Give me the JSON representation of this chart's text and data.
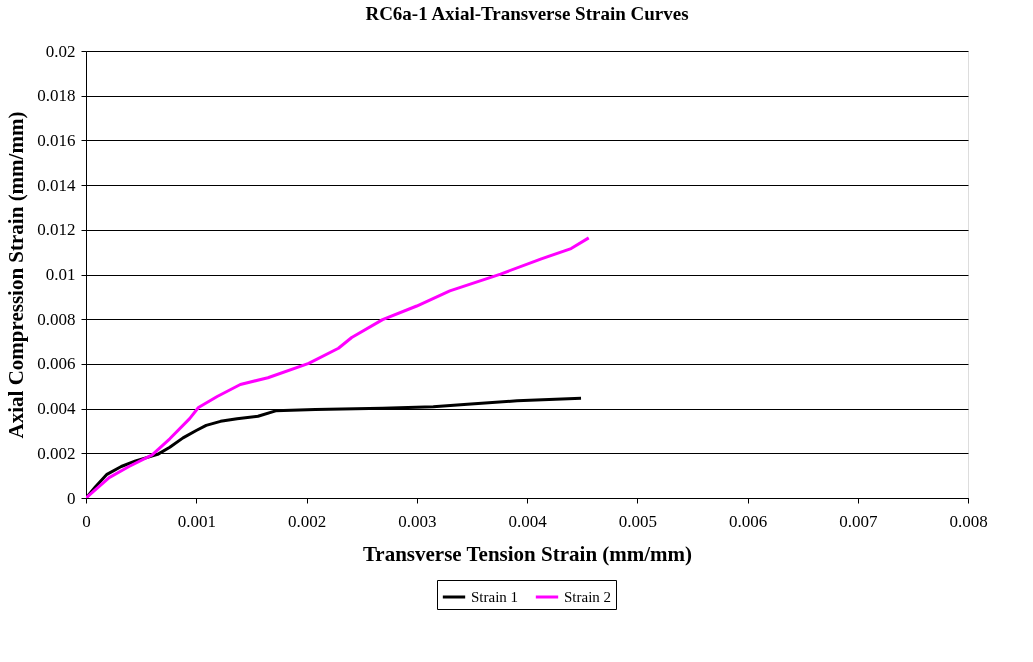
{
  "chart_data": {
    "type": "line",
    "title": "RC6a-1 Axial-Transverse Strain Curves",
    "xlabel": "Transverse Tension Strain (mm/mm)",
    "ylabel": "Axial Compression Strain (mm/mm)",
    "xlim": [
      0,
      0.008
    ],
    "xticks": [
      0,
      0.001,
      0.002,
      0.003,
      0.004,
      0.005,
      0.006,
      0.007,
      0.008
    ],
    "ylim": [
      0,
      0.02
    ],
    "yticks": [
      0,
      0.002,
      0.004,
      0.006,
      0.008,
      0.01,
      0.012,
      0.014,
      0.016,
      0.018,
      0.02
    ],
    "grid": "y",
    "legend": "bottom",
    "marker": "none",
    "line_style": "solid",
    "series": [
      {
        "name": "Strain 1",
        "color": "#000000",
        "x": [
          0,
          8.6e-05,
          0.00019,
          0.00032,
          0.00045,
          0.00065,
          0.00076,
          0.00088,
          0.001,
          0.00109,
          0.00122,
          0.00137,
          0.00156,
          0.00172,
          0.00208,
          0.00269,
          0.00315,
          0.00346,
          0.00391,
          0.00449
        ],
        "values": [
          0,
          0.0005,
          0.00106,
          0.00141,
          0.00166,
          0.00195,
          0.00227,
          0.00269,
          0.00302,
          0.00325,
          0.00343,
          0.00355,
          0.00366,
          0.0039,
          0.00396,
          0.00402,
          0.00408,
          0.0042,
          0.00435,
          0.00446
        ]
      },
      {
        "name": "Strain 2",
        "color": "#ff00ff",
        "x": [
          0,
          0.00021,
          0.00039,
          0.0006,
          0.00076,
          0.00094,
          0.00102,
          0.00119,
          0.0014,
          0.00165,
          0.00202,
          0.00229,
          0.00241,
          0.00269,
          0.003,
          0.0033,
          0.00376,
          0.00413,
          0.0044,
          0.00456
        ],
        "values": [
          0,
          0.00091,
          0.00141,
          0.00193,
          0.00265,
          0.00355,
          0.00405,
          0.00454,
          0.00508,
          0.00538,
          0.00602,
          0.0067,
          0.00718,
          0.00798,
          0.00859,
          0.00927,
          0.01002,
          0.0107,
          0.01116,
          0.01164
        ]
      }
    ]
  }
}
